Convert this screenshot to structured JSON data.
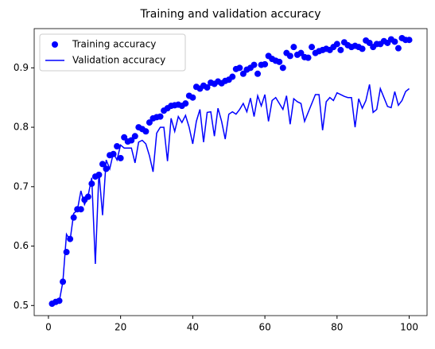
{
  "chart_data": {
    "type": "line",
    "title": "Training and validation accuracy",
    "x": [
      1,
      2,
      3,
      4,
      5,
      6,
      7,
      8,
      9,
      10,
      11,
      12,
      13,
      14,
      15,
      16,
      17,
      18,
      19,
      20,
      21,
      22,
      23,
      24,
      25,
      26,
      27,
      28,
      29,
      30,
      31,
      32,
      33,
      34,
      35,
      36,
      37,
      38,
      39,
      40,
      41,
      42,
      43,
      44,
      45,
      46,
      47,
      48,
      49,
      50,
      51,
      52,
      53,
      54,
      55,
      56,
      57,
      58,
      59,
      60,
      61,
      62,
      63,
      64,
      65,
      66,
      67,
      68,
      69,
      70,
      71,
      72,
      73,
      74,
      75,
      76,
      77,
      78,
      79,
      80,
      81,
      82,
      83,
      84,
      85,
      86,
      87,
      88,
      89,
      90,
      91,
      92,
      93,
      94,
      95,
      96,
      97,
      98,
      99,
      100
    ],
    "series": [
      {
        "name": "Training accuracy",
        "color": "#0000ff",
        "marker": "dot",
        "values": [
          0.503,
          0.506,
          0.508,
          0.54,
          0.59,
          0.612,
          0.648,
          0.662,
          0.662,
          0.678,
          0.683,
          0.705,
          0.717,
          0.72,
          0.738,
          0.73,
          0.753,
          0.755,
          0.768,
          0.748,
          0.783,
          0.776,
          0.778,
          0.785,
          0.8,
          0.797,
          0.793,
          0.808,
          0.815,
          0.817,
          0.818,
          0.828,
          0.832,
          0.836,
          0.837,
          0.838,
          0.836,
          0.84,
          0.853,
          0.85,
          0.868,
          0.865,
          0.87,
          0.867,
          0.875,
          0.873,
          0.877,
          0.874,
          0.878,
          0.88,
          0.885,
          0.898,
          0.9,
          0.89,
          0.897,
          0.9,
          0.905,
          0.89,
          0.905,
          0.906,
          0.92,
          0.915,
          0.912,
          0.91,
          0.9,
          0.925,
          0.92,
          0.935,
          0.922,
          0.925,
          0.918,
          0.917,
          0.935,
          0.925,
          0.928,
          0.93,
          0.932,
          0.93,
          0.935,
          0.94,
          0.93,
          0.943,
          0.938,
          0.935,
          0.937,
          0.935,
          0.932,
          0.946,
          0.942,
          0.935,
          0.94,
          0.94,
          0.945,
          0.942,
          0.948,
          0.944,
          0.933,
          0.95,
          0.947,
          0.947
        ]
      },
      {
        "name": "Validation accuracy",
        "color": "#0000ff",
        "marker": "line",
        "values": [
          0.503,
          0.505,
          0.507,
          0.54,
          0.62,
          0.61,
          0.655,
          0.66,
          0.693,
          0.67,
          0.685,
          0.715,
          0.57,
          0.725,
          0.652,
          0.745,
          0.73,
          0.757,
          0.745,
          0.77,
          0.765,
          0.765,
          0.765,
          0.74,
          0.775,
          0.778,
          0.772,
          0.752,
          0.725,
          0.79,
          0.8,
          0.8,
          0.743,
          0.815,
          0.793,
          0.818,
          0.808,
          0.82,
          0.8,
          0.772,
          0.81,
          0.83,
          0.775,
          0.825,
          0.826,
          0.785,
          0.832,
          0.81,
          0.78,
          0.822,
          0.826,
          0.822,
          0.83,
          0.84,
          0.826,
          0.849,
          0.818,
          0.853,
          0.836,
          0.855,
          0.81,
          0.845,
          0.85,
          0.84,
          0.83,
          0.853,
          0.805,
          0.848,
          0.843,
          0.84,
          0.81,
          0.825,
          0.84,
          0.855,
          0.855,
          0.795,
          0.843,
          0.85,
          0.845,
          0.858,
          0.855,
          0.852,
          0.85,
          0.85,
          0.8,
          0.848,
          0.832,
          0.845,
          0.872,
          0.825,
          0.83,
          0.865,
          0.85,
          0.835,
          0.833,
          0.86,
          0.837,
          0.845,
          0.86,
          0.865
        ]
      }
    ],
    "xlim": [
      -3.95,
      104.95
    ],
    "xticks": [
      0,
      20,
      40,
      60,
      80,
      100
    ],
    "ylim": [
      0.483,
      0.966
    ],
    "yticks": [
      0.5,
      0.6,
      0.7,
      0.8,
      0.9
    ],
    "legend": "upper left"
  }
}
